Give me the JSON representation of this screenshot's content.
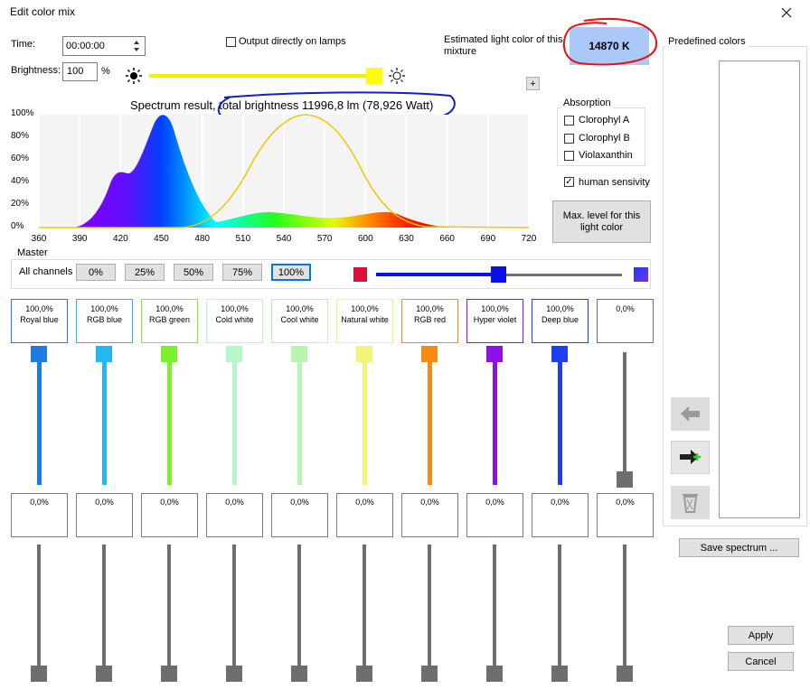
{
  "window": {
    "title": "Edit color mix"
  },
  "time": {
    "label": "Time:",
    "value": "00:00:00"
  },
  "output": {
    "label": "Output directly on lamps",
    "checked": false
  },
  "brightness": {
    "label": "Brightness:",
    "value": "100",
    "unit": "%"
  },
  "estimate": {
    "label": "Estimated light color of this mixture",
    "value": "14870 K"
  },
  "add_button": "+",
  "spectrum": {
    "title": "Spectrum result, total brightness 11996,8 lm (78,926 Watt)",
    "yticks": [
      "100%",
      "80%",
      "60%",
      "40%",
      "20%",
      "0%"
    ],
    "xticks": [
      "360",
      "390",
      "420",
      "450",
      "480",
      "510",
      "540",
      "570",
      "600",
      "630",
      "660",
      "690",
      "720"
    ]
  },
  "absorption": {
    "title": "Absorption",
    "items": [
      {
        "label": "Clorophyl A",
        "checked": false
      },
      {
        "label": "Clorophyl B",
        "checked": false
      },
      {
        "label": "Violaxanthin",
        "checked": false
      }
    ]
  },
  "human": {
    "label": "human sensivity",
    "checked": true
  },
  "max_button": "Max. level for this light color",
  "master": {
    "title": "Master",
    "label": "All channels",
    "buttons": [
      "0%",
      "25%",
      "50%",
      "75%",
      "100%"
    ],
    "selected": 4
  },
  "channels": [
    {
      "value": "100,0%",
      "name": "Royal blue",
      "secondary": "0,0%",
      "color": "#1e7be0"
    },
    {
      "value": "100,0%",
      "name": "RGB blue",
      "secondary": "0,0%",
      "color": "#22b8f0"
    },
    {
      "value": "100,0%",
      "name": "RGB green",
      "secondary": "0,0%",
      "color": "#7cf02a"
    },
    {
      "value": "100,0%",
      "name": "Cold white",
      "secondary": "0,0%",
      "color": "#b4f7c8"
    },
    {
      "value": "100,0%",
      "name": "Cool white",
      "secondary": "0,0%",
      "color": "#b8f5b0"
    },
    {
      "value": "100,0%",
      "name": "Natural white",
      "secondary": "0,0%",
      "color": "#f2f57a"
    },
    {
      "value": "100,0%",
      "name": "RGB red",
      "secondary": "0,0%",
      "color": "#f88a12"
    },
    {
      "value": "100,0%",
      "name": "Hyper violet",
      "secondary": "0,0%",
      "color": "#8c10e8"
    },
    {
      "value": "100,0%",
      "name": "Deep blue",
      "secondary": "0,0%",
      "color": "#1e3ef0"
    },
    {
      "value": "0,0%",
      "secondary": "0,0%",
      "color": "#6e6e6e"
    }
  ],
  "predefined": {
    "title": "Predefined colors"
  },
  "save_button": "Save spectrum ...",
  "apply_button": "Apply",
  "cancel_button": "Cancel"
}
